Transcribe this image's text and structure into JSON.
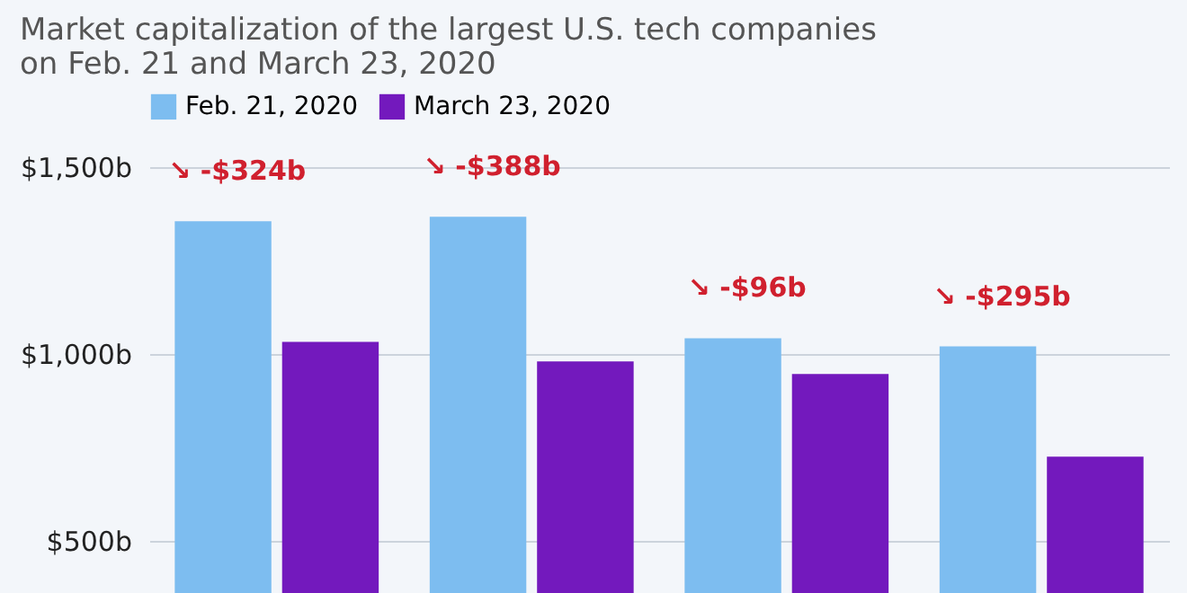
{
  "chart_data": {
    "type": "bar",
    "title": [
      "Market capitalization of the largest U.S. tech companies",
      "on Feb. 21 and March 23, 2020"
    ],
    "categories": [
      null,
      null,
      null,
      null
    ],
    "series": [
      {
        "name": "Feb. 21, 2020",
        "color": "#7dbdf0",
        "values": [
          1355,
          1367,
          1042,
          1020
        ]
      },
      {
        "name": "March 23, 2020",
        "color": "#7319bd",
        "values": [
          1032,
          980,
          946,
          725
        ]
      }
    ],
    "annotations": [
      "↘ -$324b",
      "↘ -$388b",
      "↘ -$96b",
      "↘ -$295b"
    ],
    "ylim": [
      360,
      1500
    ],
    "yticks": [
      {
        "value": 500,
        "label": "$500b"
      },
      {
        "value": 1000,
        "label": "$1,000b"
      },
      {
        "value": 1500,
        "label": "$1,500b"
      }
    ],
    "grid": "y",
    "legend": "top",
    "tick_labels": "y"
  }
}
